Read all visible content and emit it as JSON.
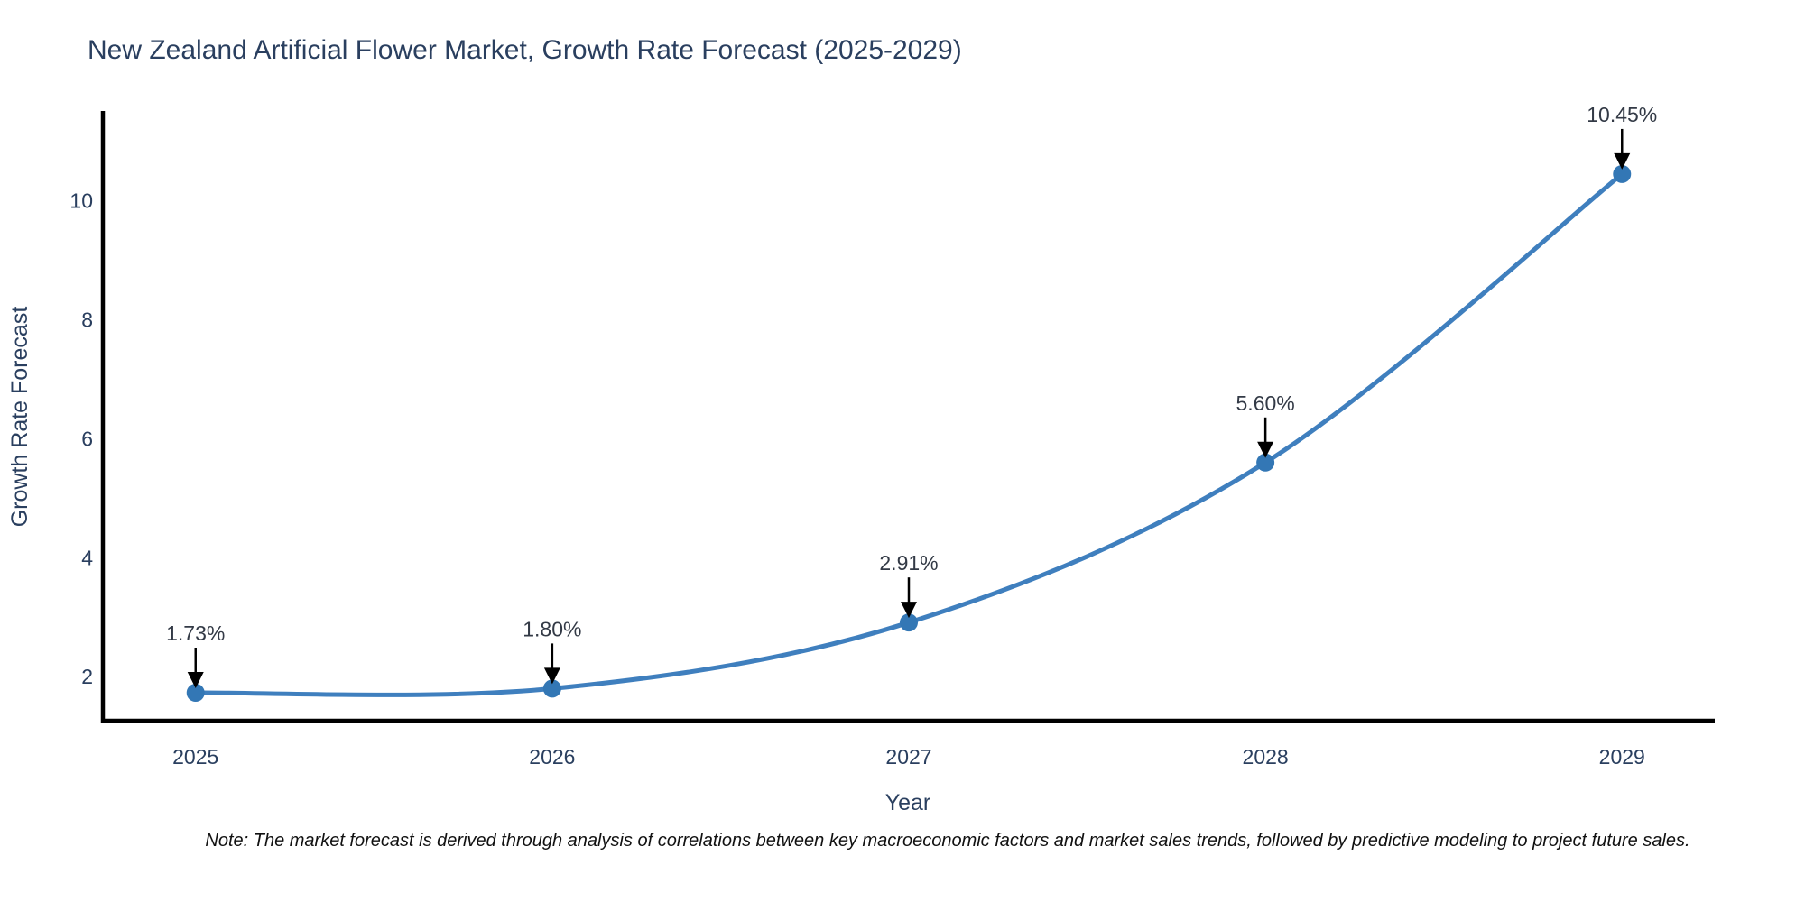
{
  "figure": {
    "background": "#ffffff"
  },
  "chart_data": {
    "type": "line",
    "title": "New Zealand Artificial Flower Market, Growth Rate Forecast (2025-2029)",
    "xlabel": "Year",
    "ylabel": "Growth Rate Forecast",
    "categories": [
      2025,
      2026,
      2027,
      2028,
      2029
    ],
    "values": [
      1.73,
      1.8,
      2.91,
      5.6,
      10.45
    ],
    "point_labels": [
      "1.73%",
      "1.80%",
      "2.91%",
      "5.60%",
      "10.45%"
    ],
    "yticks": [
      2,
      4,
      6,
      8,
      10
    ],
    "xlim": [
      2024.74,
      2029.26
    ],
    "ylim": [
      1.26,
      11.48
    ],
    "grid": false,
    "legend_position": "none",
    "line_shape": "spline",
    "marker": "circle",
    "colors": {
      "line": "#3f7fbe",
      "marker": "#3377b5",
      "axis": "#000000",
      "arrow": "#000000",
      "text": "#2a3f5f",
      "annotation": "#333a46",
      "background": "#ffffff"
    },
    "note": "Note: The market forecast is derived through analysis of correlations between key macroeconomic factors and market sales trends, followed by predictive modeling to project future sales."
  }
}
